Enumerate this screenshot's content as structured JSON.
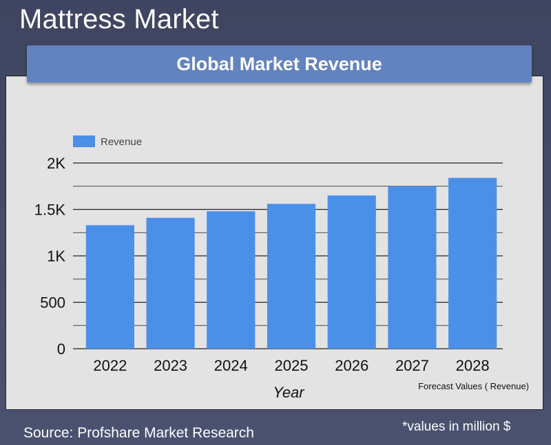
{
  "page_title": "Mattress Market",
  "banner_title": "Global Market Revenue",
  "source_text": "Source: Profshare Market Research",
  "unit_note": "*values in million $",
  "chart_data": {
    "type": "bar",
    "categories": [
      "2022",
      "2023",
      "2024",
      "2025",
      "2026",
      "2027",
      "2028"
    ],
    "series": [
      {
        "name": "Revenue",
        "values": [
          1330,
          1410,
          1480,
          1560,
          1650,
          1750,
          1840
        ],
        "color": "#4a90e8"
      }
    ],
    "title": "",
    "xlabel": "Year",
    "ylabel": "",
    "ylim": [
      0,
      2000
    ],
    "yticks": [
      0,
      500,
      1000,
      1500,
      2000
    ],
    "ytick_labels": [
      "0",
      "500",
      "1K",
      "1.5K",
      "2K"
    ],
    "minor_gridlines": [
      250,
      750,
      1250,
      1750
    ],
    "grid": true,
    "legend_position": "top-left",
    "annotation": "Forecast Values ( Revenue)"
  }
}
